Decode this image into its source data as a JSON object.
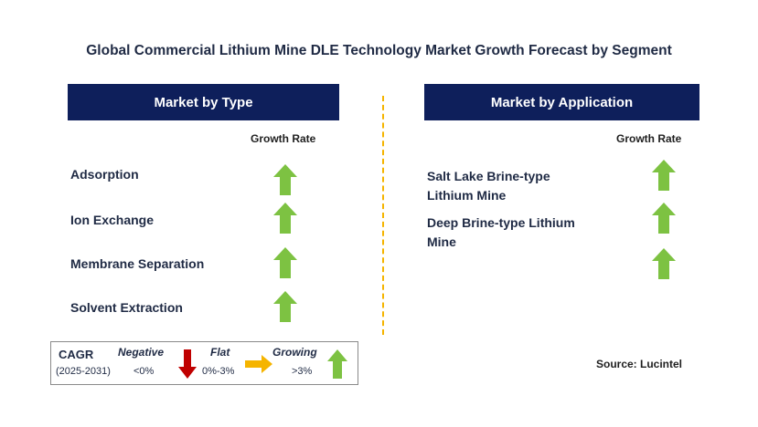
{
  "title": "Global Commercial Lithium Mine DLE Technology Market Growth Forecast by Segment",
  "left_panel": {
    "header": "Market by Type",
    "growth_rate_label": "Growth Rate",
    "items": [
      {
        "label": "Adsorption",
        "trend": "growing"
      },
      {
        "label": "Ion Exchange",
        "trend": "growing"
      },
      {
        "label": "Membrane Separation",
        "trend": "growing"
      },
      {
        "label": "Solvent Extraction",
        "trend": "growing"
      }
    ]
  },
  "right_panel": {
    "header": "Market by Application",
    "growth_rate_label": "Growth Rate",
    "items": [
      {
        "label_line1": "Salt Lake Brine-type",
        "label_line2": "Lithium Mine",
        "trend": "growing"
      },
      {
        "label_line1": "Deep Brine-type Lithium",
        "label_line2": "Mine",
        "trend": "growing"
      },
      {
        "trend": "growing"
      }
    ]
  },
  "legend": {
    "cagr_label": "CAGR",
    "period": "(2025-2031)",
    "negative_label": "Negative",
    "negative_value": "<0%",
    "flat_label": "Flat",
    "flat_value": "0%-3%",
    "growing_label": "Growing",
    "growing_value": ">3%"
  },
  "source": "Source: Lucintel",
  "colors": {
    "header_bg": "#0e1f5b",
    "up_arrow": "#7dc242",
    "down_arrow": "#c00000",
    "flat_arrow": "#f5b400",
    "divider": "#f5b400"
  },
  "icons": {
    "up": "arrow-up-icon",
    "down": "arrow-down-icon",
    "flat": "arrow-right-icon"
  }
}
